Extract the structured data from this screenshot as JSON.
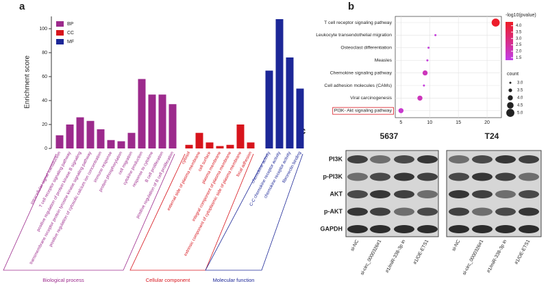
{
  "panel_labels": [
    "a",
    "b",
    "c"
  ],
  "chart_data": [
    {
      "type": "bar",
      "ylabel": "Enrichment score",
      "ylim": [
        0,
        110
      ],
      "yticks": [
        0,
        20,
        40,
        60,
        80,
        100
      ],
      "series": [
        {
          "name": "BP",
          "group": "Biological process",
          "color": "#9c2a8c",
          "categories": [
            "intracellular signal transduction",
            "T cell receptor signaling pathway",
            "positive regulation of protein kinase B signaling",
            "transmembrane receptor protein tyrosine kinase signaling pathway",
            "positive regulation of cytosolic calcium ion concentration",
            "immune response",
            "protein phosphorylation",
            "cell migration",
            "cytokine production",
            "response to cytokine",
            "B cell proliferation",
            "positive regulation of B cell proliferation"
          ],
          "values": [
            11,
            20,
            26,
            23,
            16,
            7,
            6,
            13,
            58,
            45,
            45,
            37
          ]
        },
        {
          "name": "CC",
          "group": "Cellular component",
          "color": "#d7141c",
          "categories": [
            "cytosol",
            "external side of plasma membrane",
            "cell surface",
            "plasma membrane",
            "integral component of plasma membrane",
            "extrinsic component of cytoplasmic side of plasma membrane",
            "focal adhesion"
          ],
          "values": [
            3,
            13,
            5,
            2,
            3,
            20,
            5
          ]
        },
        {
          "name": "MF",
          "group": "Molecular function",
          "color": "#1c2797",
          "categories": [
            "chemokine activity",
            "C-C chemokine receptor activity",
            "chemokine receptor activity",
            "fibronectin binding"
          ],
          "values": [
            65,
            108,
            76,
            50
          ]
        }
      ]
    },
    {
      "type": "dot",
      "categories": [
        "T cell receptor signaling pathway",
        "Leukocyte transendothelial migration",
        "Osteoclast differentiation",
        "Measles",
        "Chemokine signaling pathway",
        "Cell adhesion molecules (CAMs)",
        "Viral carcinogenesis",
        "PI3K- Akt signaling pathway"
      ],
      "values": [
        21.5,
        11,
        9.8,
        9.6,
        9.2,
        9,
        8.3,
        5
      ],
      "color_values": [
        4.2,
        1.5,
        1.5,
        1.5,
        2,
        1.5,
        2,
        1.7
      ],
      "sizes": [
        5,
        3,
        3,
        3,
        4,
        3,
        4,
        4
      ],
      "xlim": [
        4,
        22.5
      ],
      "xticks": [
        5,
        10,
        15,
        20
      ],
      "grid": true,
      "color_title": "-log10(pvalue)",
      "colors": [
        "#c23ee8",
        "#ee1c25"
      ],
      "clim": [
        1.3,
        4.3
      ],
      "color_ticks": [
        {
          "value": 4,
          "label": "4.0"
        },
        3.5,
        {
          "value": 3,
          "label": "3.0"
        },
        2.5,
        {
          "value": 2,
          "label": "2.0"
        },
        1.5
      ],
      "size_title": "count",
      "size_ticks": [
        {
          "value": 3,
          "label": "3.0"
        },
        3.5,
        {
          "value": 4,
          "label": "4.0"
        },
        4.5,
        {
          "value": 5,
          "label": "5.0"
        }
      ]
    }
  ],
  "blot": {
    "cell_lines": [
      "5637",
      "T24"
    ],
    "proteins": [
      "PI3K",
      "p-PI3K",
      "AKT",
      "p-AKT",
      "GAPDH"
    ],
    "lanes": [
      "si-NC",
      "si-circ_0000326#1",
      "#1/miR-338-3p in",
      "#1/OE-ETS1"
    ]
  }
}
